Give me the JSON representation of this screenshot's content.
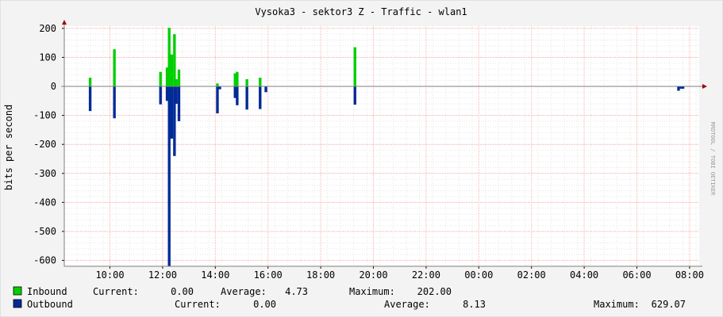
{
  "watermark": "RRDTOOL / TOBI OETIKER",
  "colors": {
    "inbound": "#00cf00",
    "outbound": "#002a97",
    "grid_minor": "#e6e6e6",
    "grid_major": "#ffb0b0",
    "axis": "#7f7f7f",
    "arrow": "#a00000"
  },
  "legend": {
    "inbound": {
      "name": "Inbound",
      "current_label": "Current:",
      "current_value": "0.00",
      "average_label": "Average:",
      "average_value": "4.73",
      "maximum_label": "Maximum:",
      "maximum_value": "202.00"
    },
    "outbound": {
      "name": "Outbound",
      "current_label": "Current:",
      "current_value": "0.00",
      "average_label": "Average:",
      "average_value": "8.13",
      "maximum_label": "Maximum:",
      "maximum_value": "629.07"
    }
  },
  "chart_data": {
    "type": "area",
    "title": "Vysoka3 - sektor3 Z - Traffic - wlan1",
    "ylabel": "bits per second",
    "xlabel": "",
    "ylim": [
      -630,
      210
    ],
    "xlim_hours": [
      8.25,
      32.25
    ],
    "grid": true,
    "legend_position": "bottom",
    "y_ticks": [
      {
        "value": 200,
        "label": "200"
      },
      {
        "value": 100,
        "label": "100"
      },
      {
        "value": 0,
        "label": "0"
      },
      {
        "value": -100,
        "label": "-100"
      },
      {
        "value": -200,
        "label": "-200"
      },
      {
        "value": -300,
        "label": "-300"
      },
      {
        "value": -400,
        "label": "-400"
      },
      {
        "value": -500,
        "label": "-500"
      },
      {
        "value": -600,
        "label": "-600"
      }
    ],
    "x_ticks": [
      {
        "value": 10,
        "label": "10:00"
      },
      {
        "value": 12,
        "label": "12:00"
      },
      {
        "value": 14,
        "label": "14:00"
      },
      {
        "value": 16,
        "label": "16:00"
      },
      {
        "value": 18,
        "label": "18:00"
      },
      {
        "value": 20,
        "label": "20:00"
      },
      {
        "value": 22,
        "label": "22:00"
      },
      {
        "value": 24,
        "label": "00:00"
      },
      {
        "value": 26,
        "label": "02:00"
      },
      {
        "value": 28,
        "label": "04:00"
      },
      {
        "value": 30,
        "label": "06:00"
      },
      {
        "value": 32,
        "label": "08:00"
      }
    ],
    "series": [
      {
        "name": "Inbound",
        "data": [
          [
            9.25,
            30
          ],
          [
            10.17,
            128
          ],
          [
            11.92,
            50
          ],
          [
            12.17,
            65
          ],
          [
            12.25,
            202
          ],
          [
            12.3,
            110
          ],
          [
            12.35,
            110
          ],
          [
            12.45,
            180
          ],
          [
            12.52,
            25
          ],
          [
            12.62,
            58
          ],
          [
            14.08,
            10
          ],
          [
            14.75,
            45
          ],
          [
            14.83,
            50
          ],
          [
            15.2,
            25
          ],
          [
            15.7,
            30
          ],
          [
            19.3,
            135
          ]
        ]
      },
      {
        "name": "Outbound",
        "data": [
          [
            9.25,
            -85
          ],
          [
            10.17,
            -110
          ],
          [
            11.92,
            -62
          ],
          [
            12.17,
            -50
          ],
          [
            12.25,
            -629
          ],
          [
            12.3,
            -180
          ],
          [
            12.35,
            -180
          ],
          [
            12.45,
            -240
          ],
          [
            12.52,
            -60
          ],
          [
            12.62,
            -120
          ],
          [
            14.08,
            -93
          ],
          [
            14.17,
            -10
          ],
          [
            14.75,
            -40
          ],
          [
            14.83,
            -65
          ],
          [
            15.2,
            -80
          ],
          [
            15.7,
            -78
          ],
          [
            15.92,
            -20
          ],
          [
            19.3,
            -63
          ],
          [
            31.58,
            -15
          ],
          [
            31.67,
            -8
          ],
          [
            31.75,
            -8
          ]
        ]
      }
    ]
  }
}
